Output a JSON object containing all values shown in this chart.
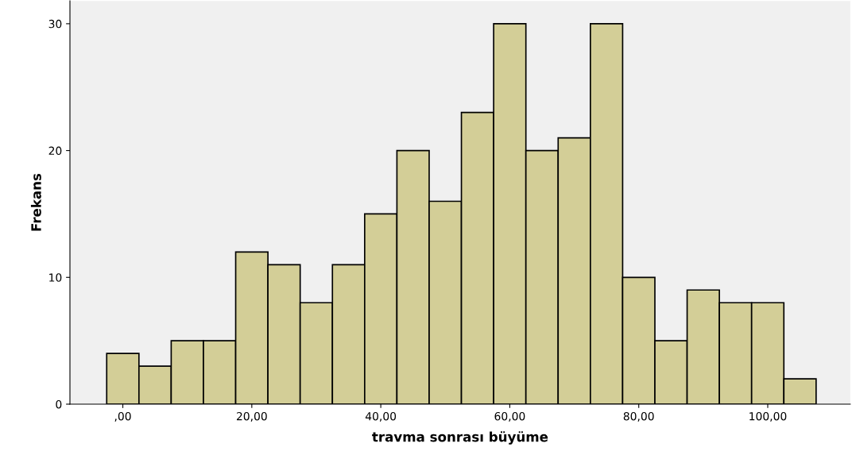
{
  "chart_data": {
    "type": "histogram",
    "xlabel": "travma sonrası büyüme",
    "ylabel": "Frekans",
    "bins": [
      -2.5,
      2.5,
      7.5,
      12.5,
      17.5,
      22.5,
      27.5,
      32.5,
      37.5,
      42.5,
      47.5,
      52.5,
      57.5,
      62.5,
      67.5,
      72.5,
      77.5,
      82.5,
      87.5,
      92.5,
      97.5,
      102.5,
      107.5
    ],
    "values": [
      4,
      3,
      5,
      5,
      12,
      11,
      8,
      11,
      15,
      20,
      16,
      23,
      30,
      20,
      21,
      30,
      10,
      5,
      9,
      8,
      8,
      2
    ],
    "color": "#d3ce97",
    "xlim": [
      -8.2,
      112.8
    ],
    "ylim": [
      0,
      31.8
    ],
    "xticks": [
      {
        "value": 0,
        "label": ",00"
      },
      {
        "value": 20,
        "label": "20,00"
      },
      {
        "value": 40,
        "label": "40,00"
      },
      {
        "value": 60,
        "label": "60,00"
      },
      {
        "value": 80,
        "label": "80,00"
      },
      {
        "value": 100,
        "label": "100,00"
      }
    ],
    "yticks": [
      0,
      10,
      20,
      30
    ],
    "grid": false,
    "legend": false
  }
}
